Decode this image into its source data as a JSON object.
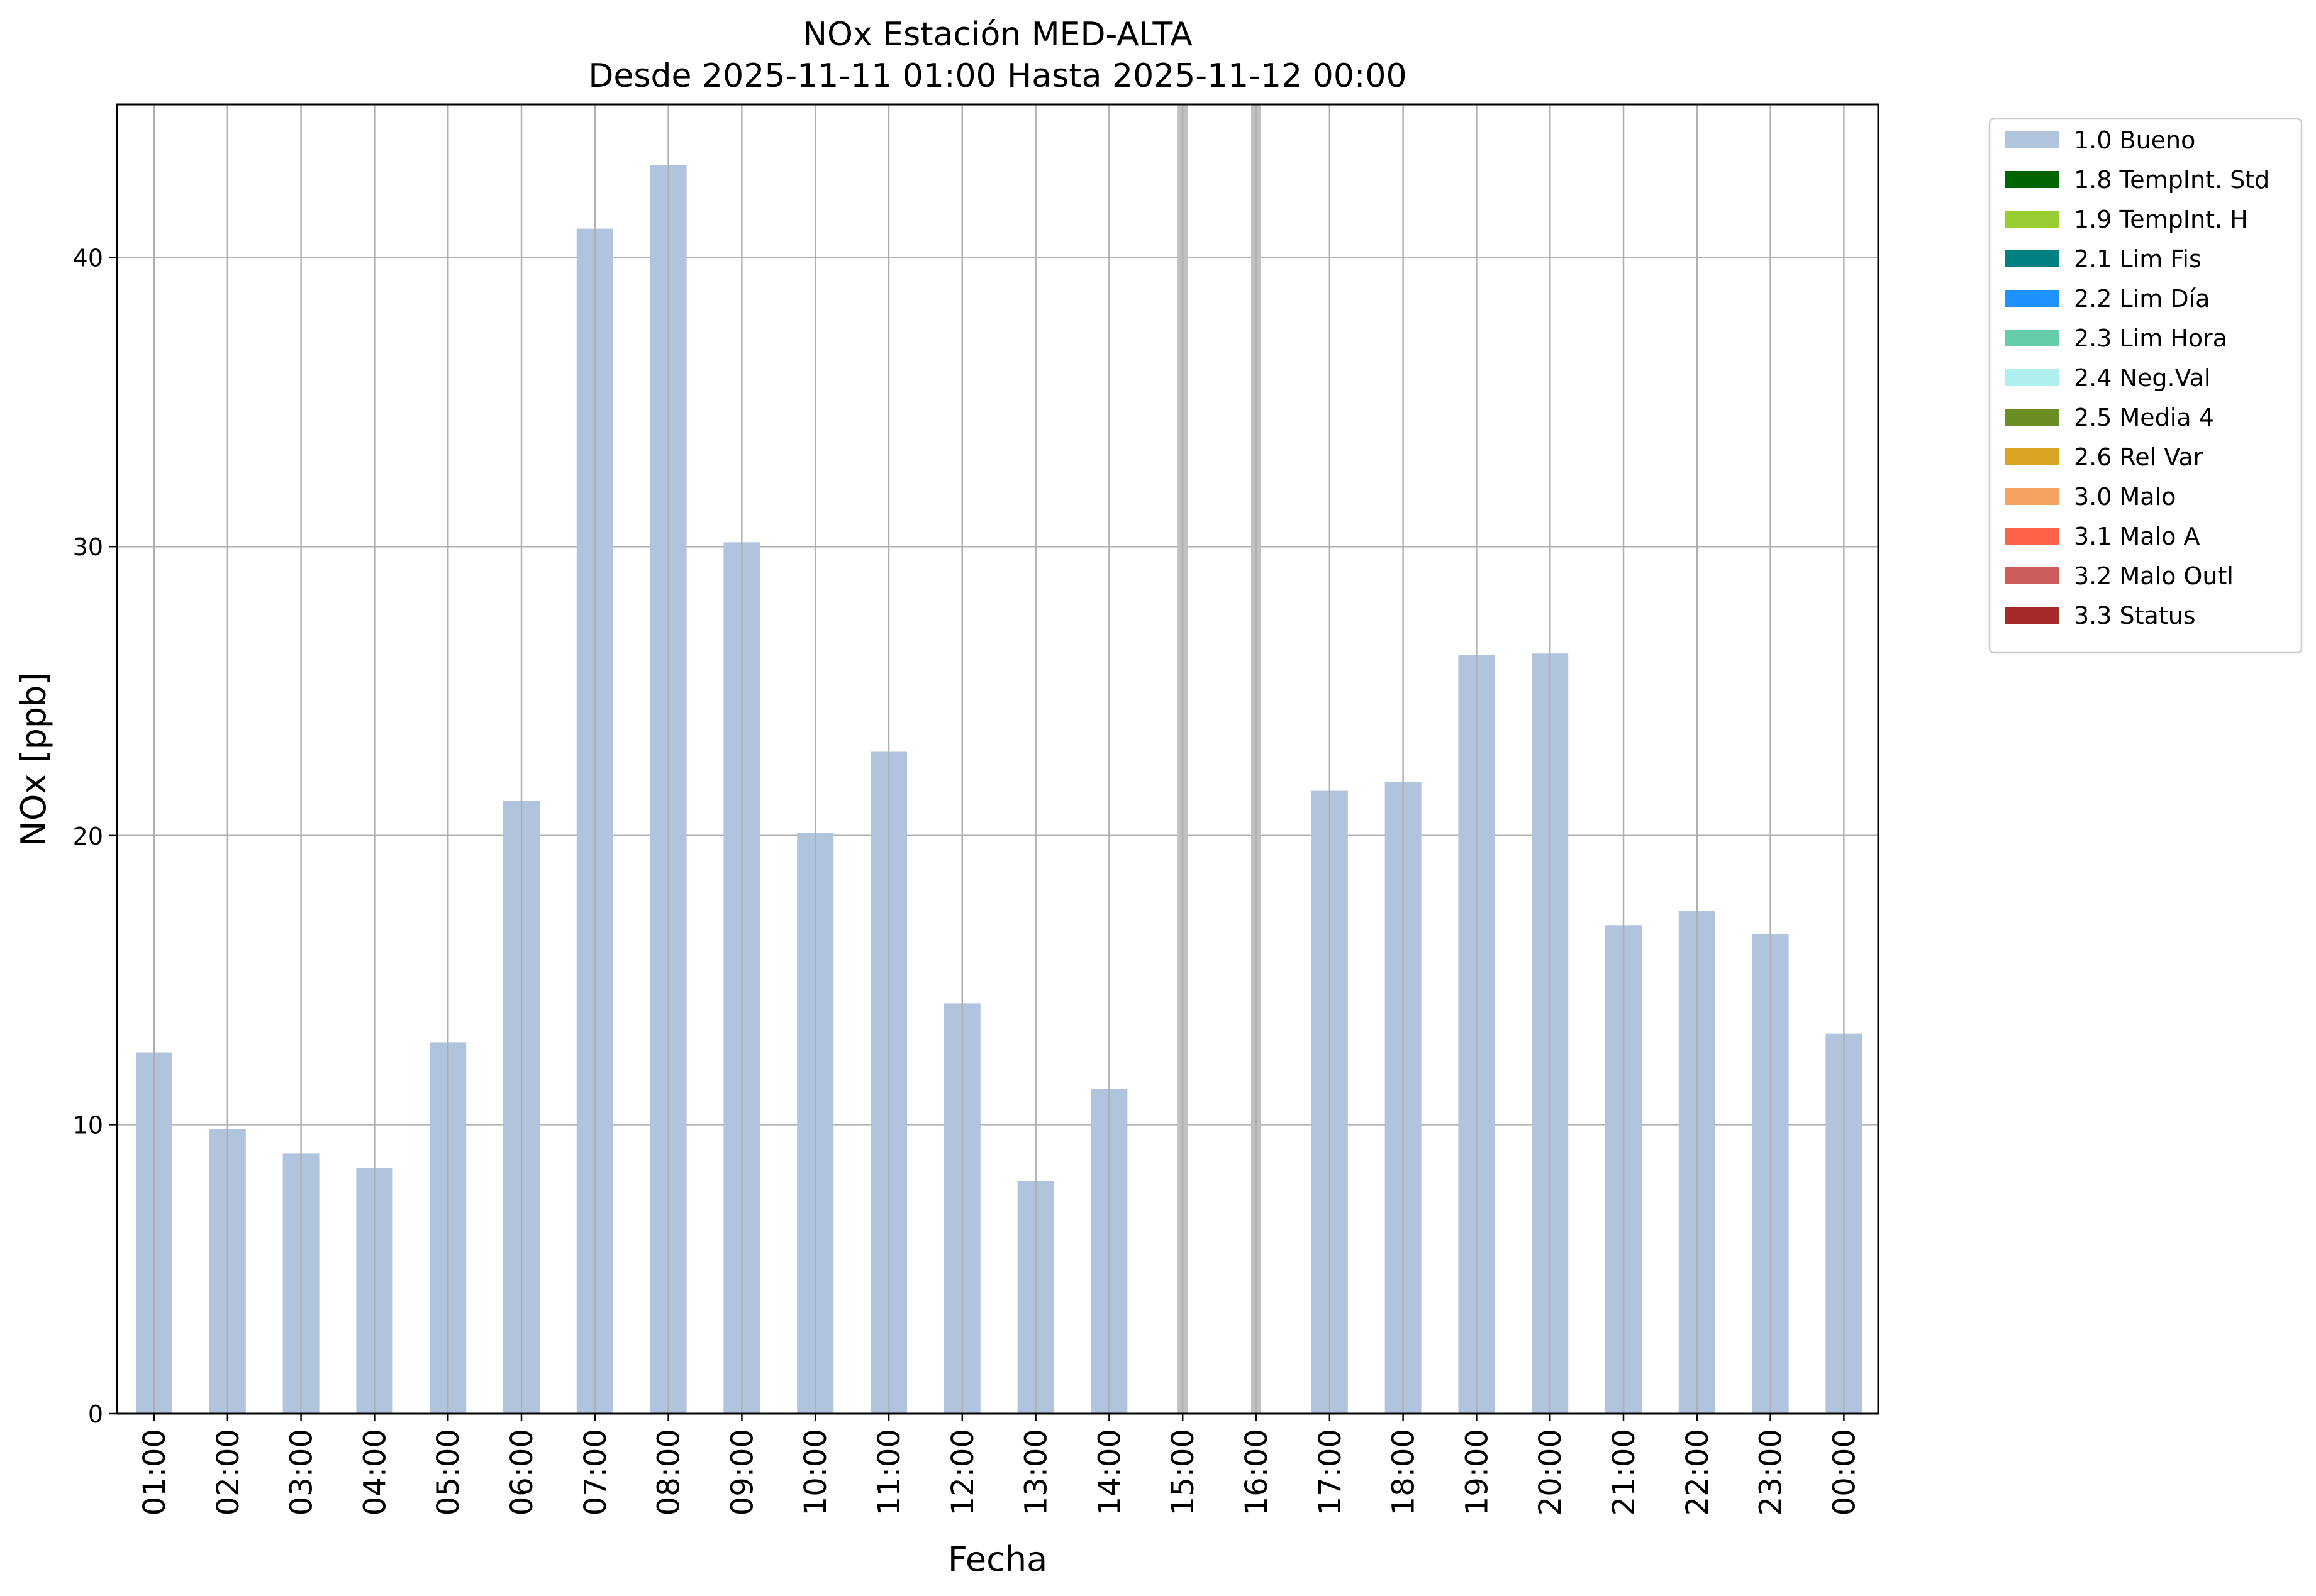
{
  "chart_data": {
    "type": "bar",
    "title_line1": "NOx Estación MED-ALTA",
    "title_line2": "Desde 2025-11-11 01:00 Hasta 2025-11-12 00:00",
    "xlabel": "Fecha",
    "ylabel": "NOx [ppb]",
    "ylim": [
      0,
      45.3
    ],
    "yticks": [
      0,
      10,
      20,
      30,
      40
    ],
    "grid": true,
    "legend_position": "upper right, outside plot",
    "categories": [
      "01:00",
      "02:00",
      "03:00",
      "04:00",
      "05:00",
      "06:00",
      "07:00",
      "08:00",
      "09:00",
      "10:00",
      "11:00",
      "12:00",
      "13:00",
      "14:00",
      "15:00",
      "16:00",
      "17:00",
      "18:00",
      "19:00",
      "20:00",
      "21:00",
      "22:00",
      "23:00",
      "00:00"
    ],
    "values": [
      12.5,
      9.85,
      9.0,
      8.5,
      12.85,
      21.2,
      41.0,
      43.2,
      30.15,
      20.1,
      22.9,
      14.2,
      8.05,
      11.25,
      null,
      null,
      21.55,
      21.85,
      26.25,
      26.3,
      16.9,
      17.4,
      16.6,
      13.15
    ],
    "bar_color": "#b0c4de",
    "missing_marker_color": "#c0c0c0",
    "legend": [
      {
        "label": "1.0 Bueno",
        "color": "#b0c4de"
      },
      {
        "label": "1.8 TempInt. Std",
        "color": "#006400"
      },
      {
        "label": "1.9 TempInt. H",
        "color": "#9acd32"
      },
      {
        "label": "2.1 Lim Fis",
        "color": "#008080"
      },
      {
        "label": "2.2 Lim Día",
        "color": "#1e90ff"
      },
      {
        "label": "2.3 Lim Hora",
        "color": "#66cdaa"
      },
      {
        "label": "2.4 Neg.Val",
        "color": "#afeeee"
      },
      {
        "label": "2.5 Media 4",
        "color": "#6b8e23"
      },
      {
        "label": "2.6 Rel Var",
        "color": "#daa520"
      },
      {
        "label": "3.0 Malo",
        "color": "#f4a460"
      },
      {
        "label": "3.1 Malo A",
        "color": "#ff6347"
      },
      {
        "label": "3.2 Malo Outl",
        "color": "#cd5c5c"
      },
      {
        "label": "3.3 Status",
        "color": "#a52a2a"
      }
    ]
  }
}
